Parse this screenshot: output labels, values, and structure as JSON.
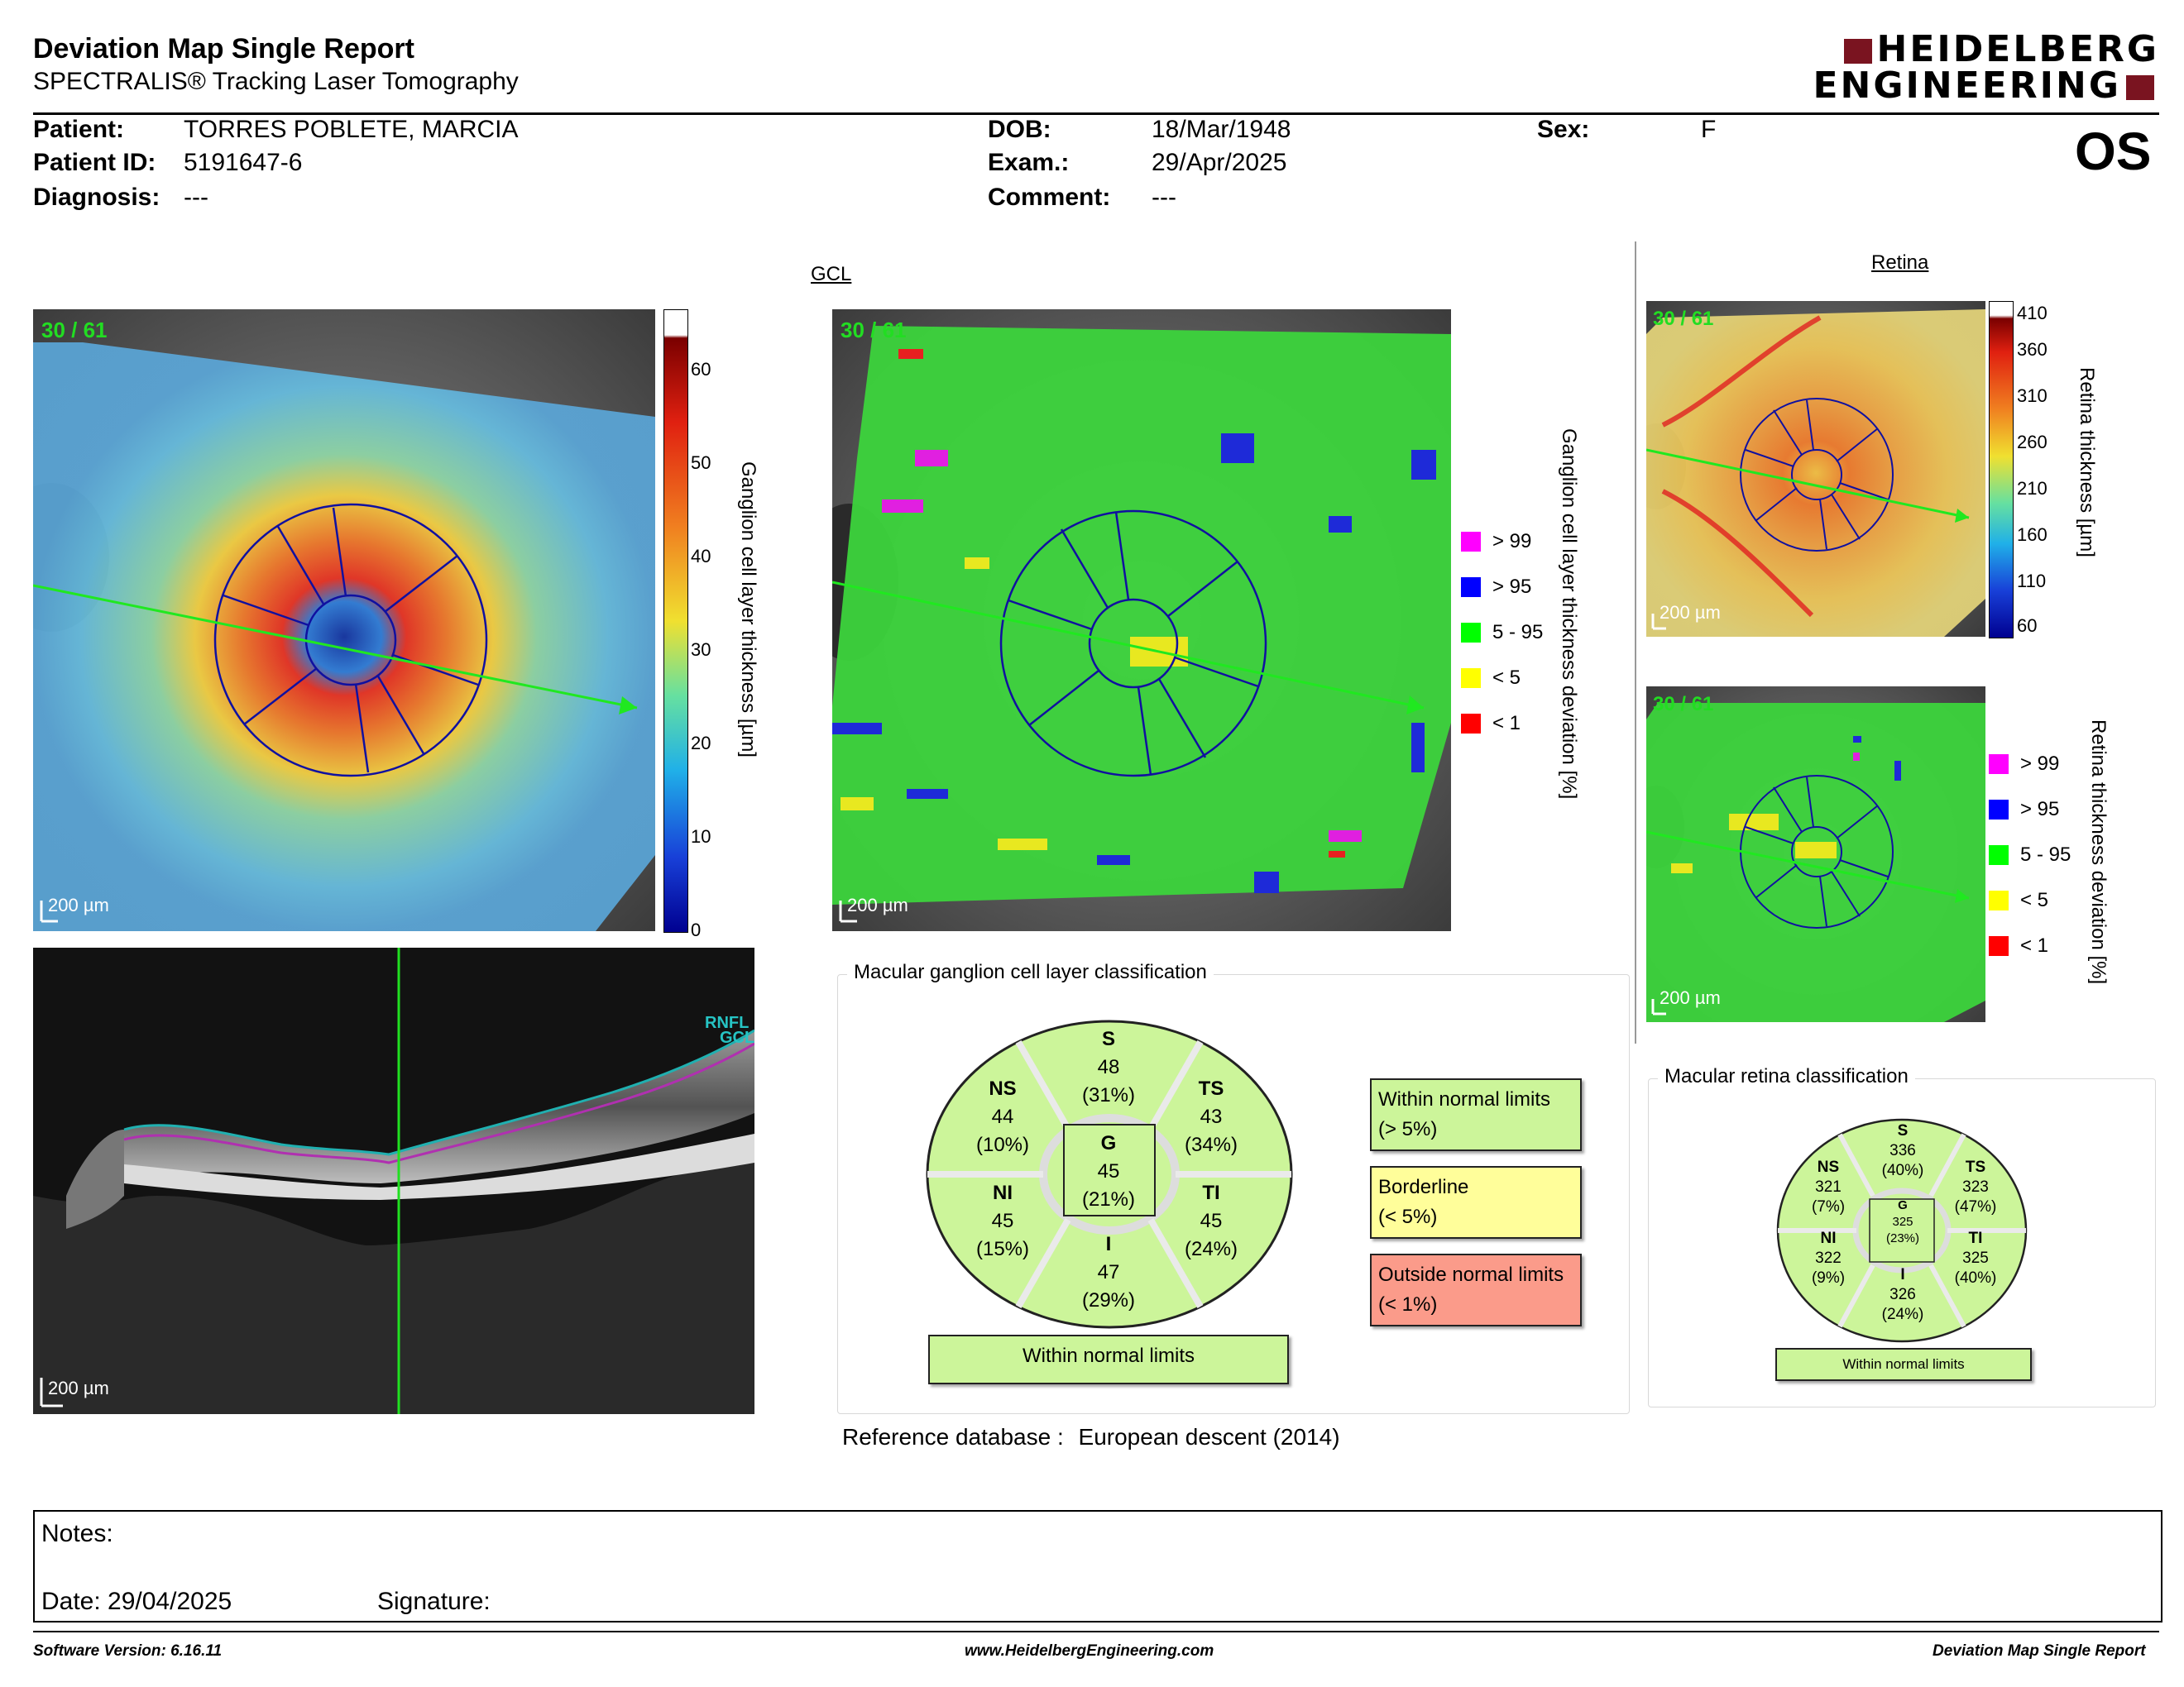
{
  "header": {
    "title": "Deviation Map Single Report",
    "subtitle": "SPECTRALIS® Tracking Laser Tomography",
    "logo_line1": "HEIDELBERG",
    "logo_line2": "ENGINEERING",
    "eye": "OS"
  },
  "patient": {
    "patient_label": "Patient:",
    "patient_value": "TORRES POBLETE, MARCIA",
    "id_label": "Patient ID:",
    "id_value": "5191647-6",
    "diagnosis_label": "Diagnosis:",
    "diagnosis_value": "---",
    "dob_label": "DOB:",
    "dob_value": "18/Mar/1948",
    "exam_label": "Exam.:",
    "exam_value": "29/Apr/2025",
    "comment_label": "Comment:",
    "comment_value": "---",
    "sex_label": "Sex:",
    "sex_value": "F"
  },
  "gcl": {
    "section_title": "GCL",
    "frame_label": "30 / 61",
    "scale_label": "200 µm",
    "colorbar_title": "Ganglion cell layer thickness [µm]",
    "colorbar_ticks": [
      "60",
      "50",
      "40",
      "30",
      "20",
      "10",
      "0"
    ],
    "deviation_title": "Ganglion cell layer thickness deviation [%]",
    "legend": [
      {
        "label": "> 99",
        "color": "#ff00ff"
      },
      {
        "label": "> 95",
        "color": "#0000ff"
      },
      {
        "label": "5 - 95",
        "color": "#00ff00"
      },
      {
        "label": "< 5",
        "color": "#ffff00"
      },
      {
        "label": "< 1",
        "color": "#ff0000"
      }
    ]
  },
  "oct": {
    "layer1": "RNFL",
    "layer2": "GCL",
    "scale_label": "200 µm"
  },
  "retina": {
    "section_title": "Retina",
    "frame_label": "30 / 61",
    "scale_label": "200 µm",
    "colorbar_title": "Retina thickness [µm]",
    "colorbar_ticks": [
      "410",
      "360",
      "310",
      "260",
      "210",
      "160",
      "110",
      "60"
    ],
    "deviation_title": "Retina thickness deviation [%]",
    "legend": [
      {
        "label": "> 99",
        "color": "#ff00ff"
      },
      {
        "label": "> 95",
        "color": "#0000ff"
      },
      {
        "label": "5 - 95",
        "color": "#00ff00"
      },
      {
        "label": "< 5",
        "color": "#ffff00"
      },
      {
        "label": "< 1",
        "color": "#ff0000"
      }
    ]
  },
  "gcl_classification": {
    "title": "Macular ganglion cell layer classification",
    "S": {
      "label": "S",
      "value": "48",
      "pct": "(31%)"
    },
    "NS": {
      "label": "NS",
      "value": "44",
      "pct": "(10%)"
    },
    "TS": {
      "label": "TS",
      "value": "43",
      "pct": "(34%)"
    },
    "G": {
      "label": "G",
      "value": "45",
      "pct": "(21%)"
    },
    "NI": {
      "label": "NI",
      "value": "45",
      "pct": "(15%)"
    },
    "TI": {
      "label": "TI",
      "value": "45",
      "pct": "(24%)"
    },
    "I": {
      "label": "I",
      "value": "47",
      "pct": "(29%)"
    },
    "result": "Within normal limits",
    "legend_wnl_1": "Within normal limits",
    "legend_wnl_2": "(> 5%)",
    "legend_bl_1": "Borderline",
    "legend_bl_2": "(< 5%)",
    "legend_onl_1": "Outside normal limits",
    "legend_onl_2": "(< 1%)",
    "colors": {
      "wnl": "#ccf59a",
      "borderline": "#fffe9a",
      "outside": "#fb9b8a"
    }
  },
  "retina_classification": {
    "title": "Macular retina classification",
    "S": {
      "label": "S",
      "value": "336",
      "pct": "(40%)"
    },
    "NS": {
      "label": "NS",
      "value": "321",
      "pct": "(7%)"
    },
    "TS": {
      "label": "TS",
      "value": "323",
      "pct": "(47%)"
    },
    "G": {
      "label": "G",
      "value": "325",
      "pct": "(23%)"
    },
    "NI": {
      "label": "NI",
      "value": "322",
      "pct": "(9%)"
    },
    "TI": {
      "label": "TI",
      "value": "325",
      "pct": "(40%)"
    },
    "I": {
      "label": "I",
      "value": "326",
      "pct": "(24%)"
    },
    "result": "Within normal limits"
  },
  "reference": {
    "label": "Reference database :",
    "value": "European descent (2014)"
  },
  "notes": {
    "notes_label": "Notes:",
    "date_label": "Date: 29/04/2025",
    "signature_label": "Signature:"
  },
  "footer": {
    "software": "Software Version: 6.16.11",
    "website": "www.HeidelbergEngineering.com",
    "report_name": "Deviation Map Single Report"
  }
}
